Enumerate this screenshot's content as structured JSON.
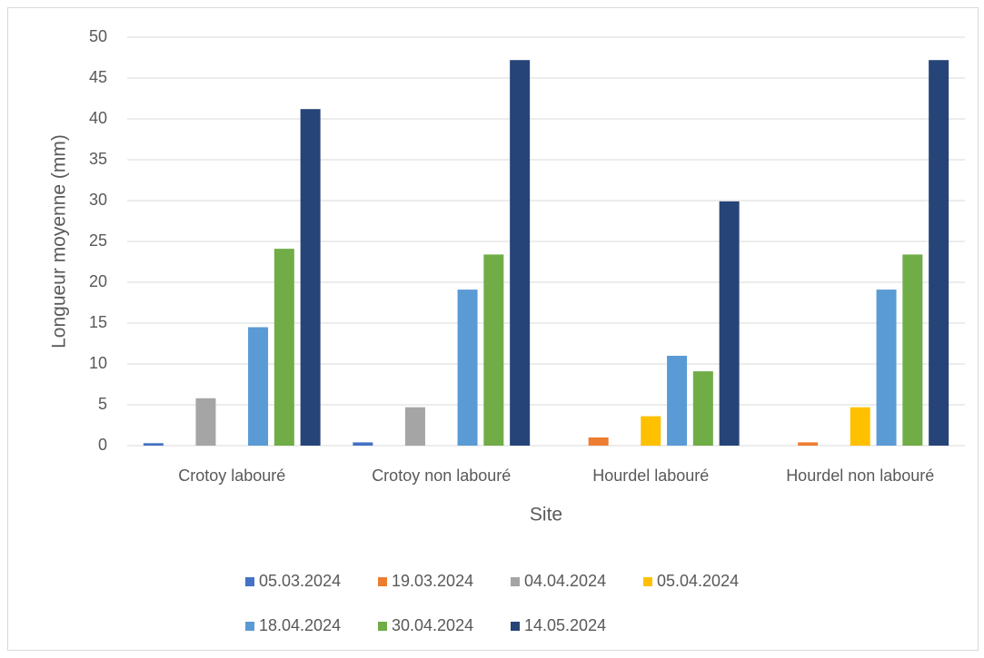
{
  "chart_data": {
    "type": "bar",
    "x_label": "Site",
    "y_label": "Longueur moyenne (mm)",
    "categories": [
      "Crotoy labouré",
      "Crotoy non labouré",
      "Hourdel labouré",
      "Hourdel non labouré"
    ],
    "series": [
      {
        "name": "05.03.2024",
        "color": "#4472c4",
        "values": [
          0.3,
          0.4,
          0,
          0
        ]
      },
      {
        "name": "19.03.2024",
        "color": "#ed7d31",
        "values": [
          0,
          0,
          1.0,
          0.4
        ]
      },
      {
        "name": "04.04.2024",
        "color": "#a5a5a5",
        "values": [
          5.8,
          4.7,
          0,
          0
        ]
      },
      {
        "name": "05.04.2024",
        "color": "#ffc000",
        "values": [
          0,
          0,
          3.6,
          4.7
        ]
      },
      {
        "name": "18.04.2024",
        "color": "#5b9bd5",
        "values": [
          14.5,
          19.1,
          11.0,
          19.1
        ]
      },
      {
        "name": "30.04.2024",
        "color": "#70ad47",
        "values": [
          24.1,
          23.4,
          9.1,
          23.4
        ]
      },
      {
        "name": "14.05.2024",
        "color": "#264478",
        "values": [
          41.2,
          47.2,
          29.9,
          47.2
        ]
      }
    ],
    "ylim": [
      0,
      50
    ],
    "yticks": [
      0,
      5,
      10,
      15,
      20,
      25,
      30,
      35,
      40,
      45,
      50
    ],
    "grid": true,
    "legend": "bottom"
  }
}
